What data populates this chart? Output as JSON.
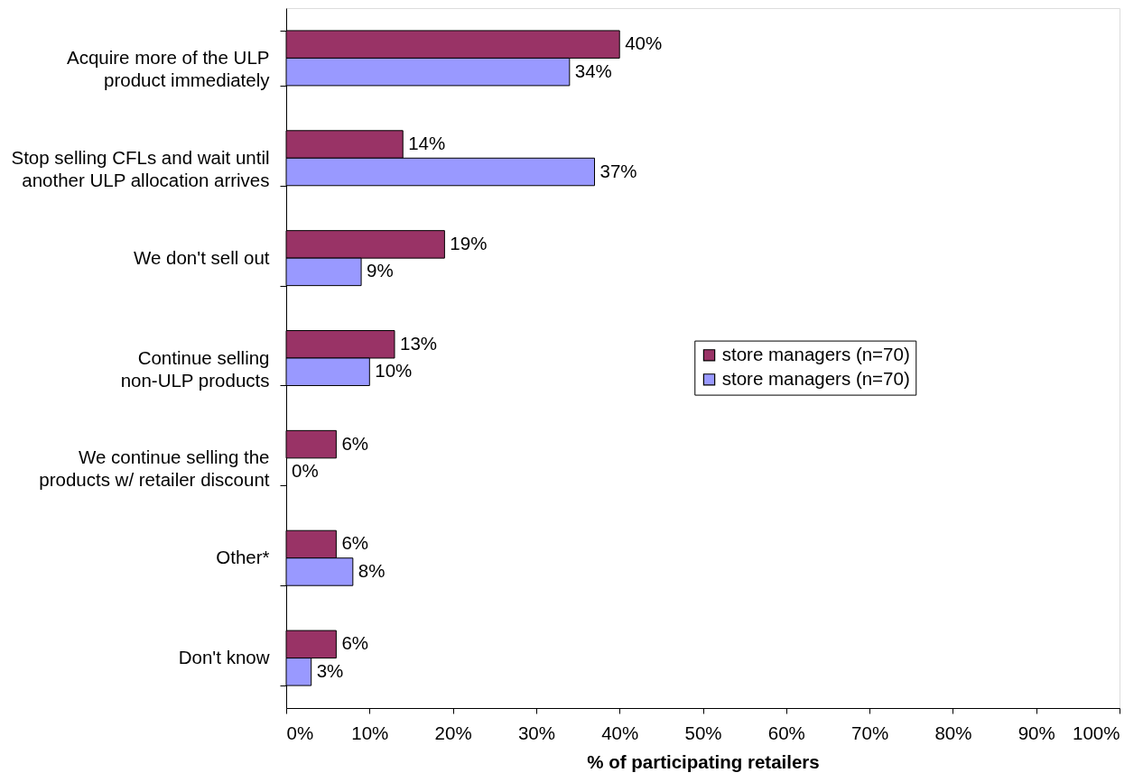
{
  "chart_data": {
    "type": "bar",
    "orientation": "horizontal",
    "categories": [
      "Acquire more of the ULP product immediately",
      "Stop selling CFLs and wait until another ULP allocation arrives",
      "We don't sell out",
      "Continue selling non-ULP products",
      "We continue selling the products w/ retailer discount",
      "Other*",
      "Don't know"
    ],
    "series": [
      {
        "name": "store managers (n=70)",
        "color": "#993366",
        "values": [
          40,
          14,
          19,
          13,
          6,
          6,
          6
        ],
        "value_labels": [
          "40%",
          "14%",
          "19%",
          "13%",
          "6%",
          "6%",
          "6%"
        ]
      },
      {
        "name": "store managers (n=70)",
        "color": "#9999ff",
        "values": [
          34,
          37,
          9,
          10,
          0,
          8,
          3
        ],
        "value_labels": [
          "34%",
          "37%",
          "9%",
          "10%",
          "0%",
          "8%",
          "3%"
        ]
      }
    ],
    "xlim": [
      0,
      100
    ],
    "xticks": [
      {
        "value": 0,
        "label": "0%"
      },
      {
        "value": 10,
        "label": "10%"
      },
      {
        "value": 20,
        "label": "20%"
      },
      {
        "value": 30,
        "label": "30%"
      },
      {
        "value": 40,
        "label": "40%"
      },
      {
        "value": 50,
        "label": "50%"
      },
      {
        "value": 60,
        "label": "60%"
      },
      {
        "value": 70,
        "label": "70%"
      },
      {
        "value": 80,
        "label": "80%"
      },
      {
        "value": 90,
        "label": "90%"
      },
      {
        "value": 100,
        "label": "100%"
      }
    ],
    "xlabel": "% of participating retailers",
    "legend": "right",
    "grid": false
  }
}
